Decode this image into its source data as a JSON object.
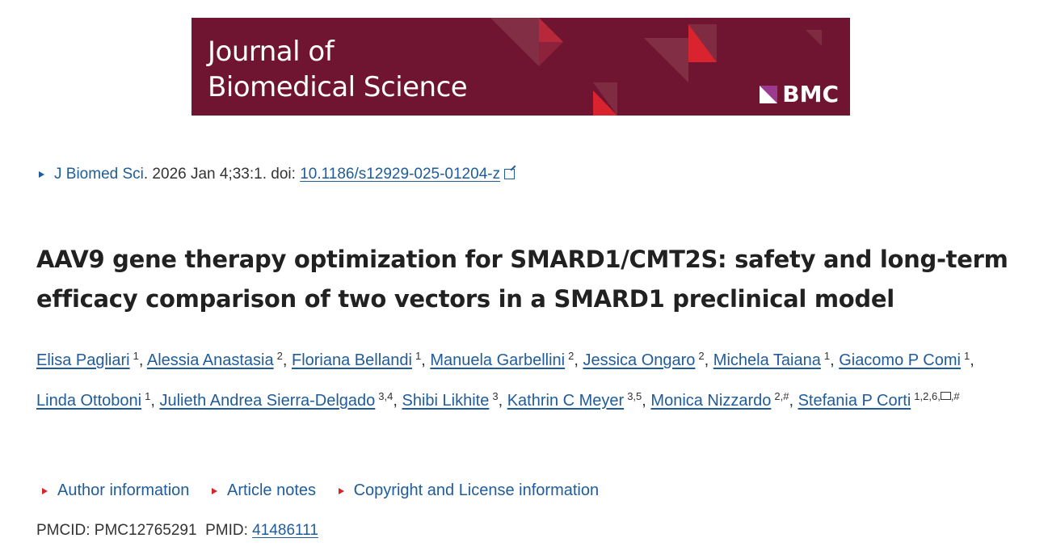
{
  "banner": {
    "journal_line1": "Journal of",
    "journal_line2": "Biomedical Science",
    "publisher": "BMC",
    "bg_color": "#6f1431",
    "accent_color": "#d9232e"
  },
  "citation": {
    "journal": "J Biomed Sci",
    "details": ". 2026 Jan 4;33:1. doi: ",
    "doi": "10.1186/s12929-025-01204-z"
  },
  "title": "AAV9 gene therapy optimization for SMARD1/CMT2S: safety and long-term efficacy comparison of two vectors in a SMARD1 preclinical model",
  "authors": [
    {
      "name": "Elisa Pagliari",
      "aff": "1"
    },
    {
      "name": "Alessia Anastasia",
      "aff": "2"
    },
    {
      "name": "Floriana Bellandi",
      "aff": "1"
    },
    {
      "name": "Manuela Garbellini",
      "aff": "2"
    },
    {
      "name": "Jessica Ongaro",
      "aff": "2"
    },
    {
      "name": "Michela Taiana",
      "aff": "1"
    },
    {
      "name": "Giacomo P Comi",
      "aff": "1"
    },
    {
      "name": "Linda Ottoboni",
      "aff": "1"
    },
    {
      "name": "Julieth Andrea Sierra-Delgado",
      "aff": "3,4"
    },
    {
      "name": "Shibi Likhite",
      "aff": "3"
    },
    {
      "name": "Kathrin C Meyer",
      "aff": "3,5"
    },
    {
      "name": "Monica Nizzardo",
      "aff": "2,#"
    },
    {
      "name": "Stefania P Corti",
      "aff": "1,2,6,",
      "aff_after_mail": ",#",
      "mail_icon": "envelope-icon"
    }
  ],
  "toggles": [
    "Author information",
    "Article notes",
    "Copyright and License information"
  ],
  "ids": {
    "pmcid_label": "PMCID: ",
    "pmcid": "PMC12765291",
    "pmid_label": "PMID: ",
    "pmid": "41486111"
  }
}
